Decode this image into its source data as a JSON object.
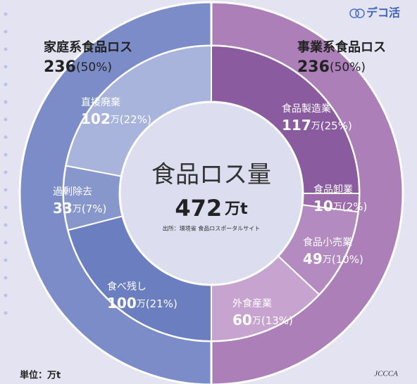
{
  "chart_data": {
    "type": "donut",
    "title": "食品ロス量",
    "total": 472,
    "total_unit": "万t",
    "source": "出所：環境省 食品ロスポータルサイト",
    "unit_note": "単位：万t",
    "brand": "デコ活",
    "logo": "JCCCA",
    "unit": "万",
    "groups": [
      {
        "name": "事業系食品ロス",
        "value": 236,
        "percent": 50,
        "percent_label": "(50%)",
        "color": "#ad7fb9"
      },
      {
        "name": "家庭系食品ロス",
        "value": 236,
        "percent": 50,
        "percent_label": "(50%)",
        "color": "#7b8cc8"
      }
    ],
    "segments": [
      {
        "name": "食品製造業",
        "value": 117,
        "percent": 25,
        "percent_label": "(25%)",
        "color": "#8b5b9f"
      },
      {
        "name": "食品卸業",
        "value": 10,
        "percent": 2,
        "percent_label": "(2%)",
        "color": "#9c6bab"
      },
      {
        "name": "食品小売業",
        "value": 49,
        "percent": 10,
        "percent_label": "(10%)",
        "color": "#b48bc0"
      },
      {
        "name": "外食産業",
        "value": 60,
        "percent": 13,
        "percent_label": "(13%)",
        "color": "#c6a4cf"
      },
      {
        "name": "食べ残し",
        "value": 100,
        "percent": 21,
        "percent_label": "(21%)",
        "color": "#6a7ec0"
      },
      {
        "name": "過剰除去",
        "value": 33,
        "percent": 7,
        "percent_label": "(7%)",
        "color": "#8797cb"
      },
      {
        "name": "直接廃棄",
        "value": 102,
        "percent": 22,
        "percent_label": "(22%)",
        "color": "#a8b4dc"
      }
    ]
  }
}
